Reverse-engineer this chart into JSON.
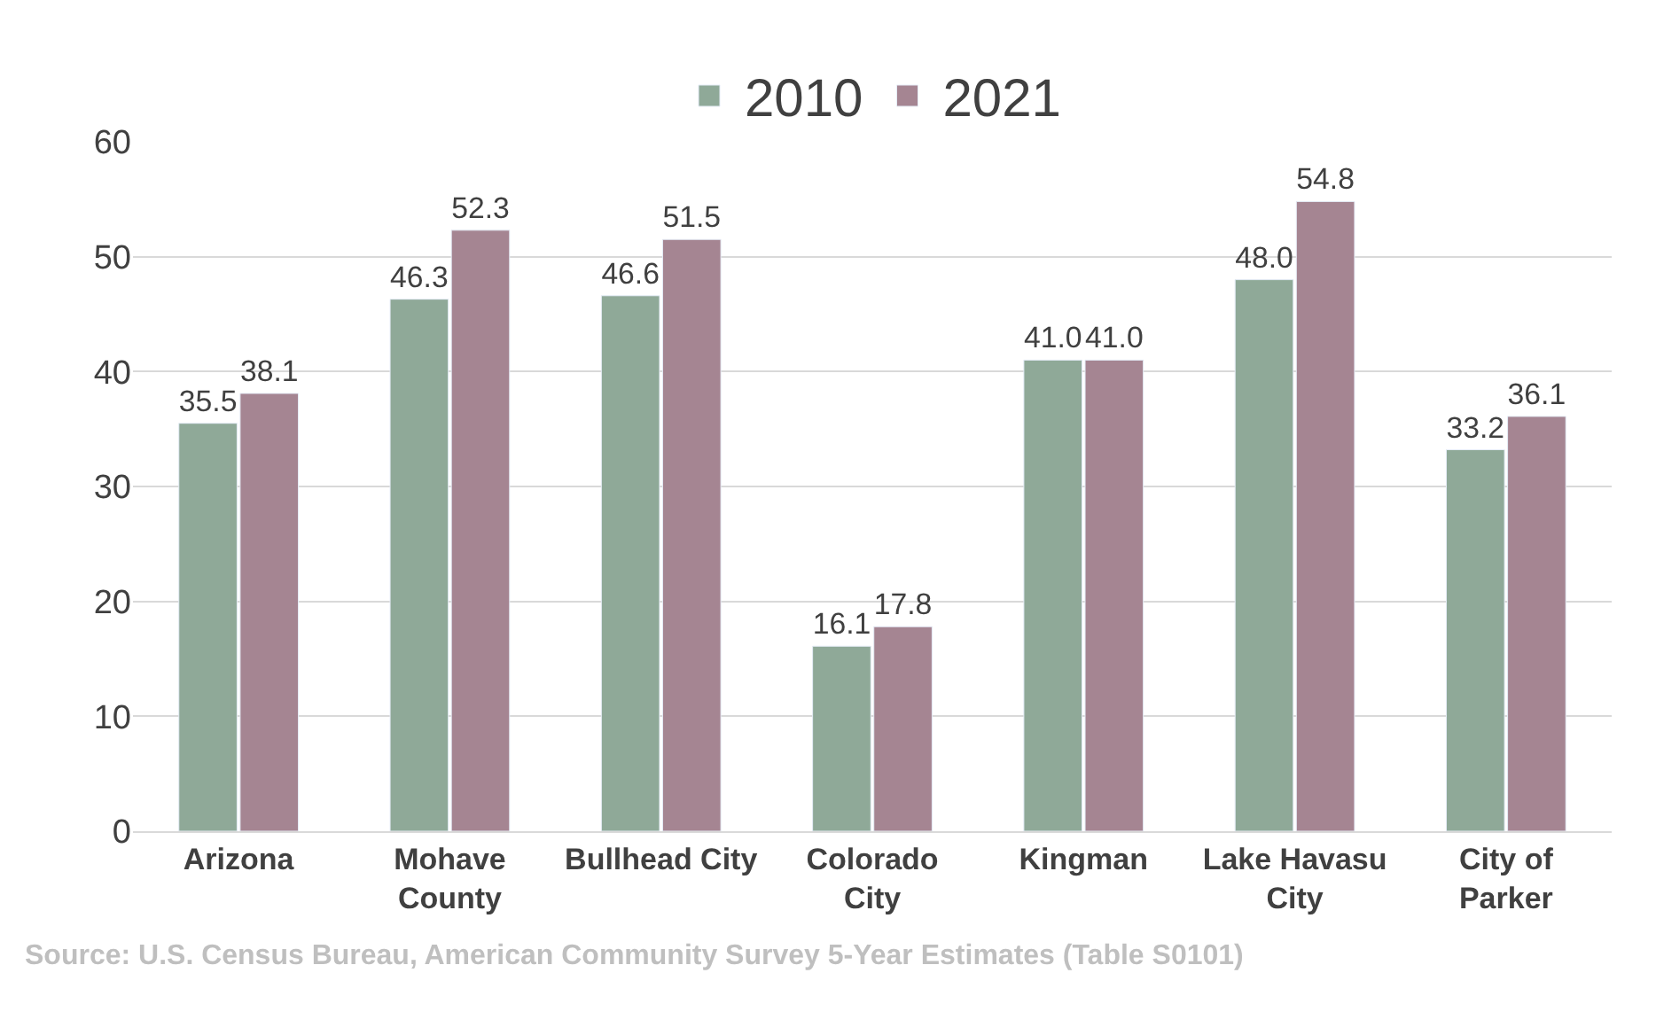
{
  "chart_data": {
    "type": "bar",
    "categories": [
      "Arizona",
      "Mohave\nCounty",
      "Bullhead City",
      "Colorado\nCity",
      "Kingman",
      "Lake Havasu\nCity",
      "City of\nParker"
    ],
    "series": [
      {
        "name": "2010",
        "color": "#8fa998",
        "values": [
          35.5,
          46.3,
          46.6,
          16.1,
          41.0,
          48.0,
          33.2
        ],
        "value_labels": [
          "35.5",
          "46.3",
          "46.6",
          "16.1",
          "41.0",
          "48.0",
          "33.2"
        ]
      },
      {
        "name": "2021",
        "color": "#a58592",
        "values": [
          38.1,
          52.3,
          51.5,
          17.8,
          41.0,
          54.8,
          36.1
        ],
        "value_labels": [
          "38.1",
          "52.3",
          "51.5",
          "17.8",
          "41.0",
          "54.8",
          "36.1"
        ]
      }
    ],
    "ylim": [
      0,
      60
    ],
    "yticks": [
      0,
      10,
      20,
      30,
      40,
      50,
      60
    ],
    "grid": "y",
    "legend": "top",
    "annotations": [
      "Source: U.S. Census Bureau, American Community Survey 5-Year Estimates (Table S0101)"
    ]
  }
}
